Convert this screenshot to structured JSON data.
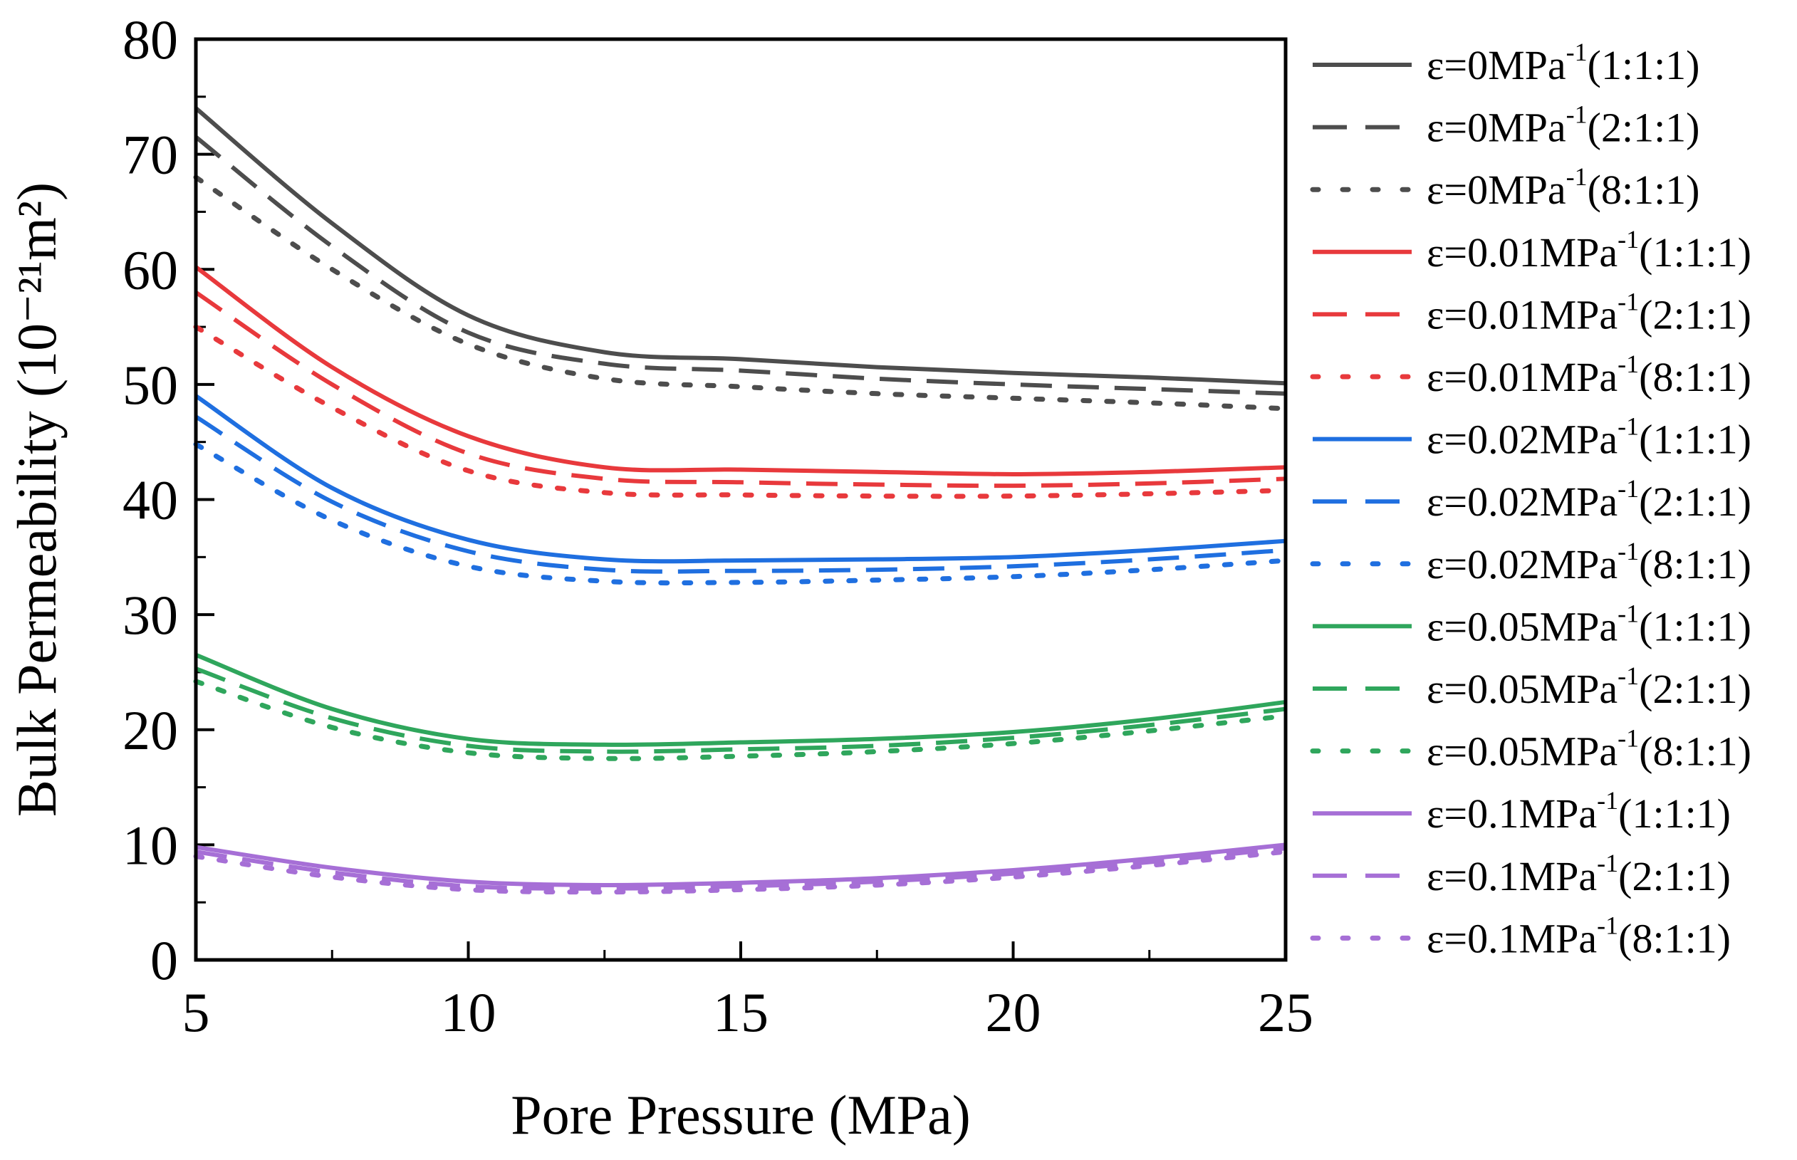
{
  "chart_data": {
    "type": "line",
    "title": "",
    "xlabel": "Pore Pressure (MPa)",
    "ylabel": "Bulk Permeability (10⁻²¹m²)",
    "xlim": [
      5,
      25
    ],
    "ylim": [
      0,
      80
    ],
    "xticks": [
      "5",
      "10",
      "15",
      "20",
      "25"
    ],
    "yticks": [
      "0",
      "10",
      "20",
      "30",
      "40",
      "50",
      "60",
      "70",
      "80"
    ],
    "x": [
      5,
      7.5,
      10,
      12.5,
      15,
      17.5,
      20,
      22.5,
      25
    ],
    "legend_position": "right",
    "series": [
      {
        "name": "ε=0MPa",
        "sup": "-1",
        "ratio": "(1:1:1)",
        "color": "#4d4d4d",
        "dash": "solid",
        "values": [
          74,
          64,
          56,
          52.8,
          52.2,
          51.5,
          51,
          50.6,
          50.1
        ]
      },
      {
        "name": "ε=0MPa",
        "sup": "-1",
        "ratio": "(2:1:1)",
        "color": "#4d4d4d",
        "dash": "dashed",
        "values": [
          71.5,
          62,
          54.5,
          51.8,
          51.2,
          50.5,
          50,
          49.6,
          49.2
        ]
      },
      {
        "name": "ε=0MPa",
        "sup": "-1",
        "ratio": "(8:1:1)",
        "color": "#4d4d4d",
        "dash": "dotted",
        "values": [
          68,
          60,
          53.5,
          50.5,
          49.8,
          49.2,
          48.8,
          48.4,
          47.9
        ]
      },
      {
        "name": "ε=0.01MPa",
        "sup": "-1",
        "ratio": "(1:1:1)",
        "color": "#e8393c",
        "dash": "solid",
        "values": [
          60.2,
          51.5,
          45.5,
          42.8,
          42.6,
          42.4,
          42.2,
          42.4,
          42.8
        ]
      },
      {
        "name": "ε=0.01MPa",
        "sup": "-1",
        "ratio": "(2:1:1)",
        "color": "#e8393c",
        "dash": "dashed",
        "values": [
          58,
          50,
          44,
          41.8,
          41.5,
          41.3,
          41.2,
          41.4,
          41.8
        ]
      },
      {
        "name": "ε=0.01MPa",
        "sup": "-1",
        "ratio": "(8:1:1)",
        "color": "#e8393c",
        "dash": "dotted",
        "values": [
          55,
          48,
          42.5,
          40.6,
          40.4,
          40.3,
          40.3,
          40.5,
          40.8
        ]
      },
      {
        "name": "ε=0.02MPa",
        "sup": "-1",
        "ratio": "(1:1:1)",
        "color": "#1f6fe0",
        "dash": "solid",
        "values": [
          49,
          41,
          36.5,
          34.8,
          34.7,
          34.8,
          35,
          35.6,
          36.4
        ]
      },
      {
        "name": "ε=0.02MPa",
        "sup": "-1",
        "ratio": "(2:1:1)",
        "color": "#1f6fe0",
        "dash": "dashed",
        "values": [
          47.2,
          39.8,
          35.5,
          33.9,
          33.8,
          33.9,
          34.2,
          34.8,
          35.6
        ]
      },
      {
        "name": "ε=0.02MPa",
        "sup": "-1",
        "ratio": "(8:1:1)",
        "color": "#1f6fe0",
        "dash": "dotted",
        "values": [
          44.8,
          38.2,
          34.2,
          32.9,
          32.8,
          33,
          33.3,
          33.9,
          34.7
        ]
      },
      {
        "name": "ε=0.05MPa",
        "sup": "-1",
        "ratio": "(1:1:1)",
        "color": "#2fa65c",
        "dash": "solid",
        "values": [
          26.5,
          21.8,
          19.2,
          18.7,
          18.9,
          19.2,
          19.8,
          20.9,
          22.4
        ]
      },
      {
        "name": "ε=0.05MPa",
        "sup": "-1",
        "ratio": "(2:1:1)",
        "color": "#2fa65c",
        "dash": "dashed",
        "values": [
          25.3,
          21,
          18.6,
          18.1,
          18.3,
          18.6,
          19.3,
          20.4,
          21.8
        ]
      },
      {
        "name": "ε=0.05MPa",
        "sup": "-1",
        "ratio": "(8:1:1)",
        "color": "#2fa65c",
        "dash": "dotted",
        "values": [
          24.2,
          20.2,
          18,
          17.5,
          17.7,
          18.1,
          18.8,
          19.9,
          21.2
        ]
      },
      {
        "name": "ε=0.1MPa",
        "sup": "-1",
        "ratio": "(1:1:1)",
        "color": "#a66fd6",
        "dash": "solid",
        "values": [
          9.8,
          8,
          6.8,
          6.5,
          6.7,
          7.1,
          7.8,
          8.8,
          10
        ]
      },
      {
        "name": "ε=0.1MPa",
        "sup": "-1",
        "ratio": "(2:1:1)",
        "color": "#a66fd6",
        "dash": "dashed",
        "values": [
          9.4,
          7.6,
          6.4,
          6.2,
          6.4,
          6.8,
          7.5,
          8.5,
          9.7
        ]
      },
      {
        "name": "ε=0.1MPa",
        "sup": "-1",
        "ratio": "(8:1:1)",
        "color": "#a66fd6",
        "dash": "dotted",
        "values": [
          9,
          7.2,
          6.1,
          5.9,
          6.1,
          6.5,
          7.2,
          8.2,
          9.4
        ]
      }
    ]
  }
}
